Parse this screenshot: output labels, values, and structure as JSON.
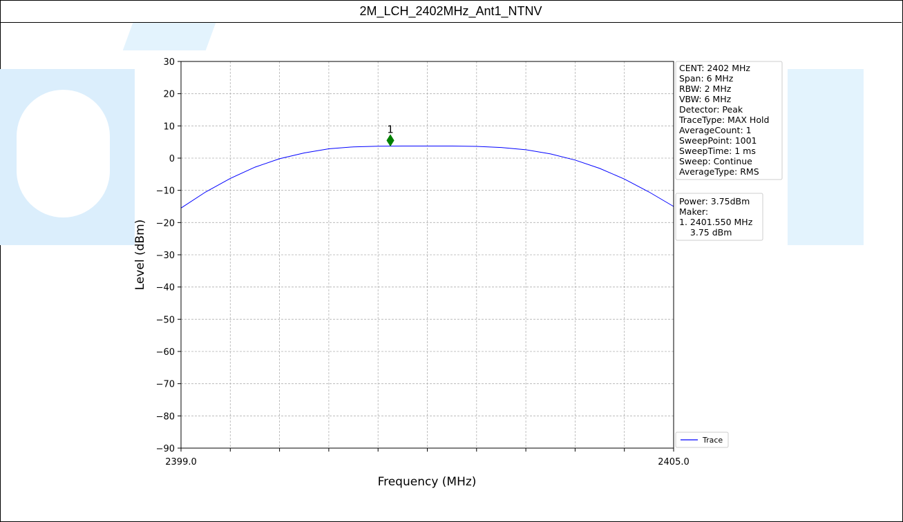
{
  "title": "2M_LCH_2402MHz_Ant1_NTNV",
  "chart_data": {
    "type": "line",
    "xlabel": "Frequency (MHz)",
    "ylabel": "Level (dBm)",
    "xlim": [
      2399.0,
      2405.0
    ],
    "ylim": [
      -90,
      30
    ],
    "x_tick_labels": [
      "2399.0",
      "2405.0"
    ],
    "y_ticks": [
      30,
      20,
      10,
      0,
      -10,
      -20,
      -30,
      -40,
      -50,
      -60,
      -70,
      -80,
      -90
    ],
    "y_tick_labels": [
      "30",
      "20",
      "10",
      "0",
      "−10",
      "−20",
      "−30",
      "−40",
      "−50",
      "−60",
      "−70",
      "−80",
      "−90"
    ],
    "grid": true,
    "series": [
      {
        "name": "Trace",
        "color": "#0000ff",
        "x": [
          2399.0,
          2399.3,
          2399.6,
          2399.9,
          2400.2,
          2400.5,
          2400.8,
          2401.1,
          2401.4,
          2401.7,
          2402.0,
          2402.3,
          2402.6,
          2402.9,
          2403.2,
          2403.5,
          2403.8,
          2404.1,
          2404.4,
          2404.7,
          2405.0
        ],
        "values": [
          -15.5,
          -10.5,
          -6.3,
          -2.8,
          -0.2,
          1.6,
          2.9,
          3.5,
          3.7,
          3.75,
          3.75,
          3.75,
          3.65,
          3.3,
          2.6,
          1.3,
          -0.6,
          -3.2,
          -6.5,
          -10.5,
          -15.0
        ]
      }
    ],
    "marker": {
      "label": "1",
      "x": 2401.55,
      "y": 5.5,
      "color": "#008000"
    },
    "legend": {
      "entries": [
        "Trace"
      ],
      "placement": "bottom-right"
    },
    "info_box_1": [
      "CENT: 2402 MHz",
      "Span: 6 MHz",
      "RBW: 2 MHz",
      "VBW: 6 MHz",
      "Detector: Peak",
      "TraceType: MAX Hold",
      "AverageCount: 1",
      "SweepPoint: 1001",
      "SweepTime: 1 ms",
      "Sweep: Continue",
      "AverageType: RMS"
    ],
    "info_box_2": [
      "Power: 3.75dBm",
      "Maker:",
      "1. 2401.550 MHz",
      "    3.75 dBm"
    ]
  }
}
